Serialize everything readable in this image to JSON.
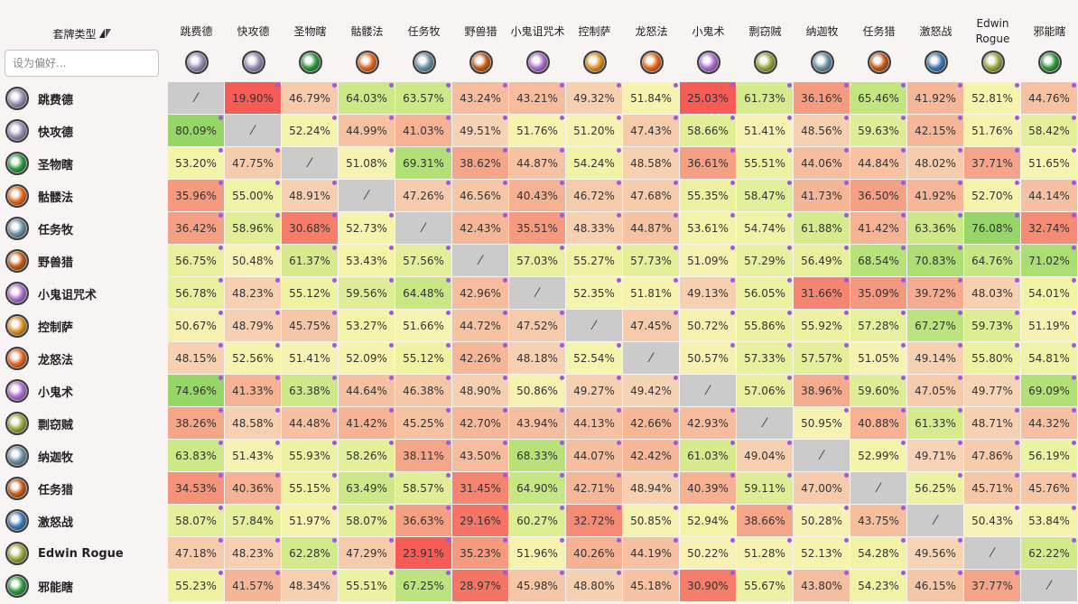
{
  "header": {
    "sort_label": "套牌类型",
    "sort_icon": "sort-triangle-icon"
  },
  "filter": {
    "placeholder": "设为偏好..."
  },
  "archetypes": [
    {
      "name": "跳费德",
      "icon": "druid-icon",
      "color": "#9a8fb8"
    },
    {
      "name": "快攻德",
      "icon": "druid-icon",
      "color": "#9a8fb8"
    },
    {
      "name": "圣物瞎",
      "icon": "demon-hunter-icon",
      "color": "#2c9a3a"
    },
    {
      "name": "骷髅法",
      "icon": "mage-icon",
      "color": "#e8661c"
    },
    {
      "name": "任务牧",
      "icon": "priest-icon",
      "color": "#6a92a8"
    },
    {
      "name": "野兽猎",
      "icon": "hunter-icon",
      "color": "#c85a12"
    },
    {
      "name": "小鬼诅咒术",
      "icon": "warlock-icon",
      "color": "#b06ed6"
    },
    {
      "name": "控制萨",
      "icon": "shaman-icon",
      "color": "#e09420"
    },
    {
      "name": "龙怒法",
      "icon": "mage-icon",
      "color": "#e8661c"
    },
    {
      "name": "小鬼术",
      "icon": "warlock-icon",
      "color": "#b06ed6"
    },
    {
      "name": "剽窃贼",
      "icon": "rogue-icon",
      "color": "#9aa83a"
    },
    {
      "name": "纳迦牧",
      "icon": "priest-icon",
      "color": "#6a92a8"
    },
    {
      "name": "任务猎",
      "icon": "hunter-icon",
      "color": "#c85a12"
    },
    {
      "name": "激怒战",
      "icon": "warrior-icon",
      "color": "#3a7ab8"
    },
    {
      "name": "Edwin Rogue",
      "icon": "rogue-icon",
      "color": "#9aa83a"
    },
    {
      "name": "邪能瞎",
      "icon": "demon-hunter-icon",
      "color": "#2c9a3a"
    }
  ],
  "matrix": [
    [
      "⁄",
      "19.90%",
      "46.79%",
      "64.03%",
      "63.57%",
      "43.24%",
      "43.21%",
      "49.32%",
      "51.84%",
      "25.03%",
      "61.73%",
      "36.16%",
      "65.46%",
      "41.92%",
      "52.81%",
      "44.76%"
    ],
    [
      "80.09%",
      "⁄",
      "52.24%",
      "44.99%",
      "41.03%",
      "49.51%",
      "51.76%",
      "51.20%",
      "47.43%",
      "58.66%",
      "51.41%",
      "48.56%",
      "59.63%",
      "42.15%",
      "51.76%",
      "58.42%"
    ],
    [
      "53.20%",
      "47.75%",
      "⁄",
      "51.08%",
      "69.31%",
      "38.62%",
      "44.87%",
      "54.24%",
      "48.58%",
      "36.61%",
      "55.51%",
      "44.06%",
      "44.84%",
      "48.02%",
      "37.71%",
      "51.65%"
    ],
    [
      "35.96%",
      "55.00%",
      "48.91%",
      "⁄",
      "47.26%",
      "46.56%",
      "40.43%",
      "46.72%",
      "47.68%",
      "55.35%",
      "58.47%",
      "41.73%",
      "36.50%",
      "41.92%",
      "52.70%",
      "44.14%"
    ],
    [
      "36.42%",
      "58.96%",
      "30.68%",
      "52.73%",
      "⁄",
      "42.43%",
      "35.51%",
      "48.33%",
      "44.87%",
      "53.61%",
      "54.74%",
      "61.88%",
      "41.42%",
      "63.36%",
      "76.08%",
      "32.74%"
    ],
    [
      "56.75%",
      "50.48%",
      "61.37%",
      "53.43%",
      "57.56%",
      "⁄",
      "57.03%",
      "55.27%",
      "57.73%",
      "51.09%",
      "57.29%",
      "56.49%",
      "68.54%",
      "70.83%",
      "64.76%",
      "71.02%"
    ],
    [
      "56.78%",
      "48.23%",
      "55.12%",
      "59.56%",
      "64.48%",
      "42.96%",
      "⁄",
      "52.35%",
      "51.81%",
      "49.13%",
      "56.05%",
      "31.66%",
      "35.09%",
      "39.72%",
      "48.03%",
      "54.01%"
    ],
    [
      "50.67%",
      "48.79%",
      "45.75%",
      "53.27%",
      "51.66%",
      "44.72%",
      "47.52%",
      "⁄",
      "47.45%",
      "50.72%",
      "55.86%",
      "55.92%",
      "57.28%",
      "67.27%",
      "59.73%",
      "51.19%"
    ],
    [
      "48.15%",
      "52.56%",
      "51.41%",
      "52.09%",
      "55.12%",
      "42.26%",
      "48.18%",
      "52.54%",
      "⁄",
      "50.57%",
      "57.33%",
      "57.57%",
      "51.05%",
      "49.14%",
      "55.80%",
      "54.81%"
    ],
    [
      "74.96%",
      "41.33%",
      "63.38%",
      "44.64%",
      "46.38%",
      "48.90%",
      "50.86%",
      "49.27%",
      "49.42%",
      "⁄",
      "57.06%",
      "38.96%",
      "59.60%",
      "47.05%",
      "49.77%",
      "69.09%"
    ],
    [
      "38.26%",
      "48.58%",
      "44.48%",
      "41.42%",
      "45.25%",
      "42.70%",
      "43.94%",
      "44.13%",
      "42.66%",
      "42.93%",
      "⁄",
      "50.95%",
      "40.88%",
      "61.33%",
      "48.71%",
      "44.32%"
    ],
    [
      "63.83%",
      "51.43%",
      "55.93%",
      "58.26%",
      "38.11%",
      "43.50%",
      "68.33%",
      "44.07%",
      "42.42%",
      "61.03%",
      "49.04%",
      "⁄",
      "52.99%",
      "49.71%",
      "47.86%",
      "56.19%"
    ],
    [
      "34.53%",
      "40.36%",
      "55.15%",
      "63.49%",
      "58.57%",
      "31.45%",
      "64.90%",
      "42.71%",
      "48.94%",
      "40.39%",
      "59.11%",
      "47.00%",
      "⁄",
      "56.25%",
      "45.71%",
      "45.76%"
    ],
    [
      "58.07%",
      "57.84%",
      "51.97%",
      "58.07%",
      "36.63%",
      "29.16%",
      "60.27%",
      "32.72%",
      "50.85%",
      "52.94%",
      "38.66%",
      "50.28%",
      "43.75%",
      "⁄",
      "50.43%",
      "53.84%"
    ],
    [
      "47.18%",
      "48.23%",
      "62.28%",
      "47.29%",
      "23.91%",
      "35.23%",
      "51.96%",
      "40.26%",
      "44.19%",
      "50.22%",
      "51.28%",
      "52.13%",
      "54.28%",
      "49.56%",
      "⁄",
      "62.22%"
    ],
    [
      "55.23%",
      "41.57%",
      "48.34%",
      "55.51%",
      "67.25%",
      "28.97%",
      "45.98%",
      "48.80%",
      "45.18%",
      "30.90%",
      "55.67%",
      "43.80%",
      "54.23%",
      "46.15%",
      "37.77%",
      "⁄"
    ]
  ],
  "marker_color": "#9b59e0"
}
